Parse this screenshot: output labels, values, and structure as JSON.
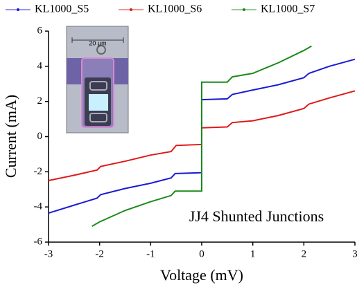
{
  "chart_data": {
    "type": "line",
    "xlabel": "Voltage (mV)",
    "ylabel": "Current (mA)",
    "annotation": "JJ4 Shunted Junctions",
    "inset_scale_label": "20 μm",
    "xlim": [
      -3,
      3
    ],
    "ylim": [
      -6,
      6
    ],
    "xticks": [
      -3,
      -2,
      -1,
      0,
      1,
      2,
      3
    ],
    "yticks": [
      -6,
      -4,
      -2,
      0,
      2,
      4,
      6
    ],
    "series": [
      {
        "name": "KL1000_S5",
        "color": "#1a1ad6",
        "x": [
          -3,
          -2.5,
          -2.05,
          -1.98,
          -1.5,
          -1,
          -0.6,
          -0.52,
          0,
          0,
          0.5,
          0.6,
          1,
          1.5,
          2,
          2.1,
          2.5,
          3
        ],
        "values": [
          -4.35,
          -3.9,
          -3.5,
          -3.3,
          -2.95,
          -2.65,
          -2.35,
          -2.1,
          -2.05,
          2.1,
          2.15,
          2.4,
          2.65,
          2.95,
          3.35,
          3.6,
          4.0,
          4.4
        ]
      },
      {
        "name": "KL1000_S6",
        "color": "#e01818",
        "x": [
          -3,
          -2.5,
          -2.05,
          -1.98,
          -1.5,
          -1,
          -0.6,
          -0.5,
          -0.02,
          0,
          0,
          0.5,
          0.6,
          1,
          1.5,
          2,
          2.1,
          2.5,
          3
        ],
        "values": [
          -2.5,
          -2.2,
          -1.9,
          -1.7,
          -1.4,
          -1.05,
          -0.85,
          -0.5,
          -0.45,
          -0.45,
          0.5,
          0.55,
          0.8,
          0.9,
          1.2,
          1.6,
          1.85,
          2.2,
          2.6
        ],
        "dummy": null
      },
      {
        "name": "KL1000_S7",
        "color": "#1a8a1a",
        "x": [
          -2.15,
          -2,
          -1.5,
          -1,
          -0.6,
          -0.52,
          0,
          0,
          0.5,
          0.6,
          1,
          1.5,
          2,
          2.15
        ],
        "values": [
          -5.1,
          -4.85,
          -4.2,
          -3.7,
          -3.35,
          -3.1,
          -3.1,
          3.1,
          3.1,
          3.4,
          3.6,
          4.2,
          4.9,
          5.15
        ]
      }
    ]
  }
}
